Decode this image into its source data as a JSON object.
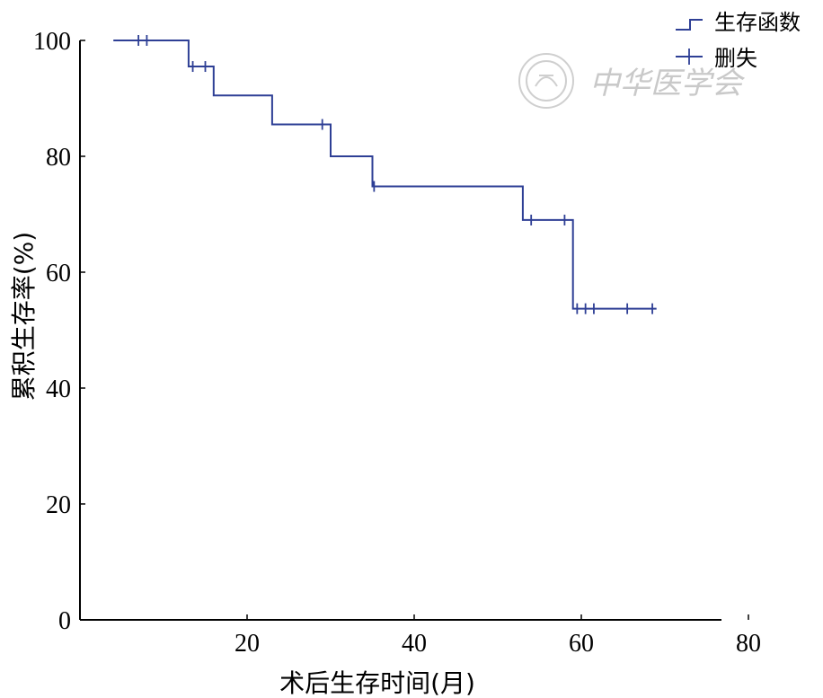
{
  "chart_data": {
    "type": "line",
    "subtype": "kaplan-meier-step",
    "xlabel": "术后生存时间(月)",
    "ylabel": "累积生存率(%)",
    "xlim": [
      0,
      80
    ],
    "ylim": [
      0,
      100
    ],
    "xticks": [
      20,
      40,
      60,
      80
    ],
    "yticks": [
      0,
      20,
      40,
      60,
      80,
      100
    ],
    "grid": false,
    "legend_position": "top-right",
    "colors": {
      "series": "#2e3f95",
      "axis": "#000000"
    },
    "series": [
      {
        "name": "生存函数",
        "step_points": [
          [
            4,
            100
          ],
          [
            13,
            100
          ],
          [
            13,
            95.5
          ],
          [
            16,
            95.5
          ],
          [
            16,
            90.5
          ],
          [
            23,
            90.5
          ],
          [
            23,
            85.5
          ],
          [
            30,
            85.5
          ],
          [
            30,
            80
          ],
          [
            35,
            80
          ],
          [
            35,
            74.8
          ],
          [
            53,
            74.8
          ],
          [
            53,
            69
          ],
          [
            59,
            69
          ],
          [
            59,
            53.7
          ],
          [
            69,
            53.7
          ]
        ]
      },
      {
        "name": "删失",
        "points": [
          [
            7,
            100
          ],
          [
            8,
            100
          ],
          [
            13.5,
            95.5
          ],
          [
            15,
            95.5
          ],
          [
            29,
            85.5
          ],
          [
            35.2,
            74.8
          ],
          [
            54,
            69
          ],
          [
            58,
            69
          ],
          [
            59.5,
            53.7
          ],
          [
            60.5,
            53.7
          ],
          [
            61.5,
            53.7
          ],
          [
            65.5,
            53.7
          ],
          [
            68.5,
            53.7
          ]
        ]
      }
    ]
  },
  "watermark": "中华医学会"
}
